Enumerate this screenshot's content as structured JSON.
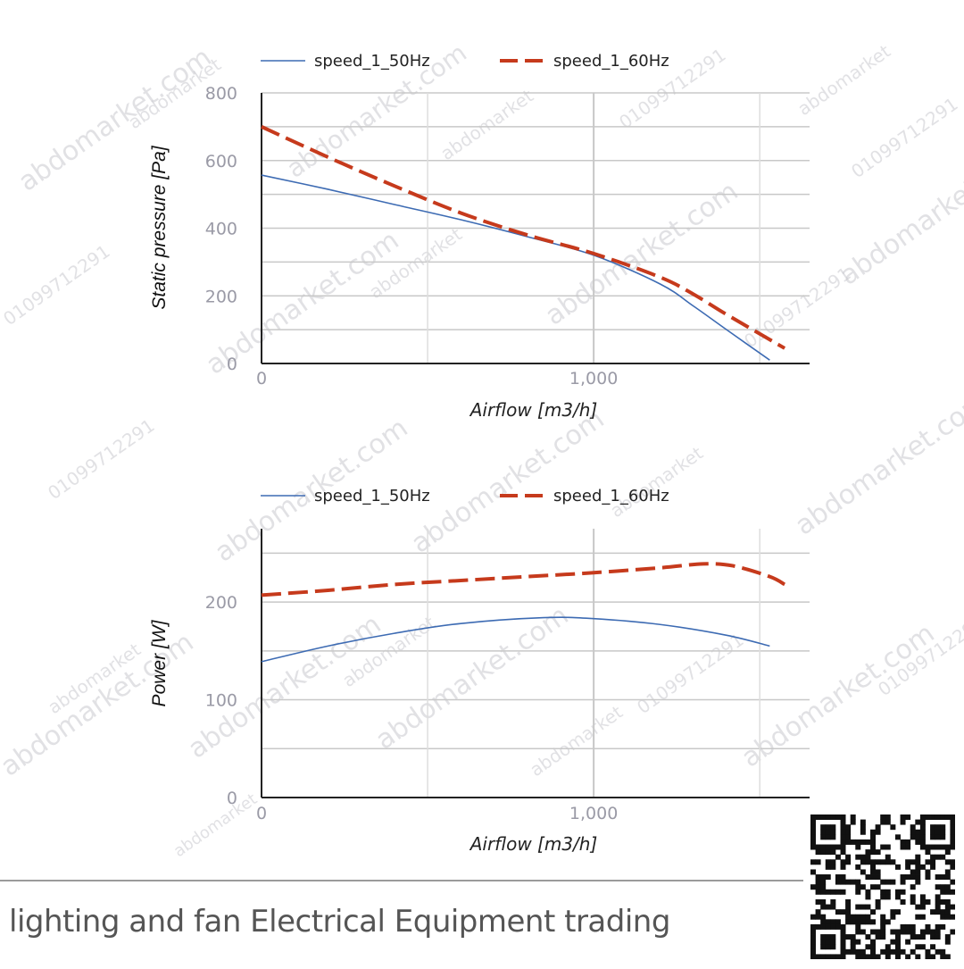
{
  "footer": {
    "text": "lighting and fan Electrical Equipment trading"
  },
  "watermark": {
    "texts": [
      "abdomarket.com",
      "abdomarket",
      "01099712291"
    ]
  },
  "colors": {
    "series_50": "#3d6bb3",
    "series_60": "#c63a1c",
    "grid": "#dedede",
    "grid_major": "#c8c8c8",
    "axis": "#222222"
  },
  "chart_data": [
    {
      "type": "line",
      "xlabel": "Airflow [m3/h]",
      "ylabel": "Static pressure [Pa]",
      "xlim": [
        0,
        1650
      ],
      "ylim": [
        0,
        800
      ],
      "x_ticks": [
        0,
        1000
      ],
      "x_tick_labels": [
        "0",
        "1,000"
      ],
      "y_ticks": [
        0,
        200,
        400,
        600,
        800
      ],
      "y_tick_labels": [
        "0",
        "200",
        "400",
        "600",
        "800"
      ],
      "grid": true,
      "legend": "top",
      "series": [
        {
          "name": "speed_1_50Hz",
          "style": "solid",
          "x": [
            0,
            200,
            400,
            600,
            800,
            1000,
            1200,
            1300,
            1400,
            1530
          ],
          "y": [
            557,
            515,
            470,
            425,
            375,
            320,
            235,
            170,
            100,
            10
          ]
        },
        {
          "name": "speed_1_60Hz",
          "style": "dashed",
          "x": [
            0,
            200,
            400,
            600,
            800,
            1000,
            1200,
            1300,
            1400,
            1575
          ],
          "y": [
            700,
            610,
            525,
            445,
            380,
            325,
            255,
            205,
            145,
            45
          ]
        }
      ]
    },
    {
      "type": "line",
      "xlabel": "Airflow [m3/h]",
      "ylabel": "Power [W]",
      "xlim": [
        0,
        1650
      ],
      "ylim": [
        0,
        275
      ],
      "x_ticks": [
        0,
        1000
      ],
      "x_tick_labels": [
        "0",
        "1,000"
      ],
      "y_ticks": [
        0,
        100,
        200
      ],
      "y_tick_labels": [
        "0",
        "100",
        "200"
      ],
      "grid": true,
      "legend": "top",
      "series": [
        {
          "name": "speed_1_50Hz",
          "style": "solid",
          "x": [
            0,
            200,
            400,
            600,
            850,
            1000,
            1200,
            1400,
            1530
          ],
          "y": [
            139,
            155,
            168,
            178,
            184,
            183,
            177,
            166,
            155
          ]
        },
        {
          "name": "speed_1_60Hz",
          "style": "dashed",
          "x": [
            0,
            200,
            400,
            600,
            800,
            1000,
            1200,
            1330,
            1420,
            1530,
            1575
          ],
          "y": [
            207,
            212,
            218,
            222,
            226,
            230,
            235,
            239,
            237,
            226,
            218
          ]
        }
      ]
    }
  ]
}
